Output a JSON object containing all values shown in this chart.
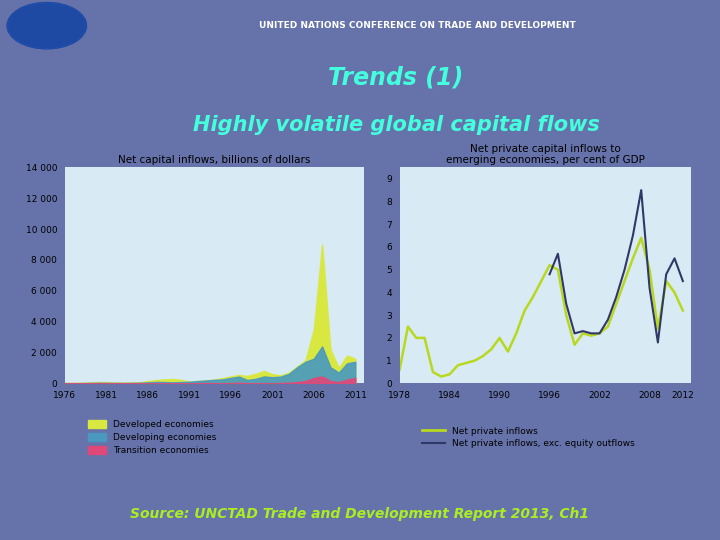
{
  "title_line1": "Trends (1)",
  "title_line2": "Highly volatile global capital flows",
  "source_text": "Source: UNCTAD Trade and Development Report 2013, Ch1",
  "bg_color": "#6673aa",
  "header_bg": "#7a86bb",
  "chart_outer_bg": "#b8d4e4",
  "chart_inner_bg": "#d8eaf4",
  "title_color": "#44ffdd",
  "source_color": "#aaee22",
  "left_chart": {
    "title": "Net capital inflows, billions of dollars",
    "years": [
      1976,
      1977,
      1978,
      1979,
      1980,
      1981,
      1982,
      1983,
      1984,
      1985,
      1986,
      1987,
      1988,
      1989,
      1990,
      1991,
      1992,
      1993,
      1994,
      1995,
      1996,
      1997,
      1998,
      1999,
      2000,
      2001,
      2002,
      2003,
      2004,
      2005,
      2006,
      2007,
      2008,
      2009,
      2010,
      2011
    ],
    "developed": [
      30,
      35,
      40,
      60,
      90,
      80,
      60,
      50,
      60,
      70,
      150,
      220,
      260,
      290,
      230,
      120,
      160,
      200,
      240,
      350,
      450,
      550,
      480,
      620,
      800,
      600,
      520,
      700,
      1100,
      1500,
      3500,
      9000,
      2200,
      1000,
      1800,
      1600
    ],
    "developing": [
      20,
      22,
      25,
      35,
      45,
      40,
      35,
      30,
      35,
      45,
      70,
      100,
      90,
      70,
      90,
      110,
      150,
      190,
      230,
      260,
      360,
      440,
      220,
      300,
      450,
      400,
      440,
      620,
      1050,
      1400,
      1600,
      2400,
      1050,
      700,
      1300,
      1400
    ],
    "transition": [
      0,
      0,
      0,
      0,
      0,
      0,
      0,
      0,
      0,
      0,
      0,
      0,
      0,
      0,
      0,
      0,
      15,
      25,
      15,
      8,
      25,
      40,
      15,
      8,
      15,
      15,
      25,
      40,
      80,
      160,
      350,
      450,
      160,
      80,
      250,
      350
    ],
    "yticks": [
      0,
      2000,
      4000,
      6000,
      8000,
      10000,
      12000,
      14000
    ],
    "ytick_labels": [
      "0",
      "2 000",
      "4 000",
      "6 000",
      "8 000",
      "10 000",
      "12 000",
      "14 000"
    ],
    "xticks": [
      1976,
      1981,
      1986,
      1991,
      1996,
      2001,
      2006,
      2011
    ],
    "ylim": [
      0,
      14000
    ],
    "developed_color": "#d8e840",
    "developing_color": "#4898c0",
    "transition_color": "#e04878",
    "legend_developed": "Developed economies",
    "legend_developing": "Developing economies",
    "legend_transition": "Transition economies"
  },
  "right_chart": {
    "title_line1": "Net private capital inflows to",
    "title_line2": "emerging economies, per cent of GDP",
    "years": [
      1978,
      1979,
      1980,
      1981,
      1982,
      1983,
      1984,
      1985,
      1986,
      1987,
      1988,
      1989,
      1990,
      1991,
      1992,
      1993,
      1994,
      1995,
      1996,
      1997,
      1998,
      1999,
      2000,
      2001,
      2002,
      2003,
      2004,
      2005,
      2006,
      2007,
      2008,
      2009,
      2010,
      2011,
      2012
    ],
    "net_private": [
      0.6,
      2.5,
      2.0,
      2.0,
      0.5,
      0.3,
      0.4,
      0.8,
      0.9,
      1.0,
      1.2,
      1.5,
      2.0,
      1.4,
      2.2,
      3.2,
      3.8,
      4.5,
      5.2,
      5.0,
      3.0,
      1.7,
      2.2,
      2.1,
      2.2,
      2.5,
      3.5,
      4.5,
      5.5,
      6.4,
      5.0,
      2.4,
      4.5,
      4.0,
      3.2
    ],
    "net_excl_equity": [
      null,
      null,
      null,
      null,
      null,
      null,
      null,
      null,
      null,
      null,
      null,
      null,
      null,
      null,
      null,
      null,
      null,
      null,
      4.8,
      5.7,
      3.5,
      2.2,
      2.3,
      2.2,
      2.2,
      2.8,
      3.8,
      5.0,
      6.5,
      8.5,
      4.2,
      1.8,
      4.8,
      5.5,
      4.5
    ],
    "yticks": [
      0,
      1,
      2,
      3,
      4,
      5,
      6,
      7,
      8,
      9
    ],
    "xticks": [
      1978,
      1984,
      1990,
      1996,
      2002,
      2008,
      2012
    ],
    "ylim": [
      0,
      9.5
    ],
    "net_private_color": "#b8d820",
    "net_excl_color": "#303868",
    "legend_net_private": "Net private inflows",
    "legend_net_excl": "Net private inflows, exc. equity outflows"
  }
}
